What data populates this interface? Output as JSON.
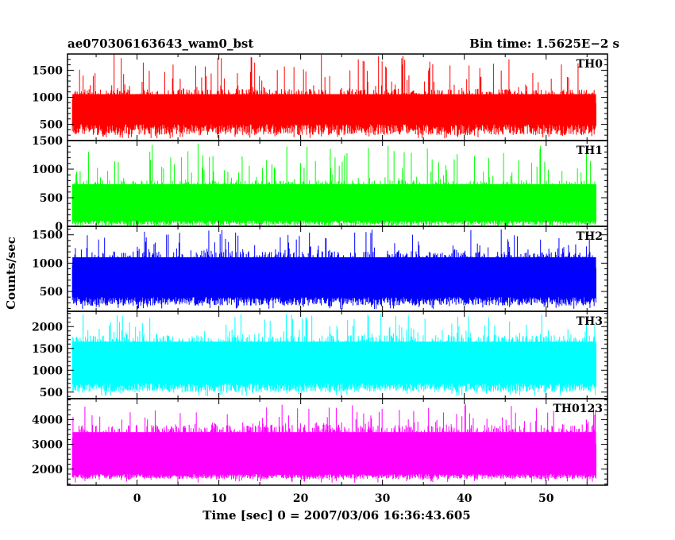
{
  "chart_data": {
    "type": "line",
    "title": "ae070306163643_wam0_bst",
    "subtitle": "Bin time: 1.5625E−2 s",
    "xlabel": "Time [sec] 0 = 2007/03/06 16:36:43.605",
    "ylabel": "Counts/sec",
    "xlim": [
      -8.5,
      57.5
    ],
    "x_data_range": [
      -7.9,
      56.1
    ],
    "xticks": [
      0,
      10,
      20,
      30,
      40,
      50
    ],
    "grid": false,
    "legend": "none",
    "panels": [
      {
        "name": "TH0",
        "color": "#ff0000",
        "ylim": [
          200,
          1800
        ],
        "yticks": [
          500,
          1000,
          1500
        ],
        "baseline": 500,
        "typical_high": 1150,
        "typical_low": 300,
        "spike_max": 1800
      },
      {
        "name": "TH1",
        "color": "#00ff00",
        "ylim": [
          0,
          1500
        ],
        "yticks": [
          0,
          500,
          1000,
          1500
        ],
        "baseline": 100,
        "typical_high": 800,
        "typical_low": 20,
        "spike_max": 1450
      },
      {
        "name": "TH2",
        "color": "#0000ff",
        "ylim": [
          150,
          1650
        ],
        "yticks": [
          500,
          1000,
          1500
        ],
        "baseline": 400,
        "typical_high": 1200,
        "typical_low": 250,
        "spike_max": 1600
      },
      {
        "name": "TH3",
        "color": "#00ffff",
        "ylim": [
          350,
          2350
        ],
        "yticks": [
          500,
          1000,
          1500,
          2000
        ],
        "baseline": 700,
        "typical_high": 1800,
        "typical_low": 500,
        "spike_max": 2300
      },
      {
        "name": "TH0123",
        "color": "#ff00ff",
        "ylim": [
          1350,
          4850
        ],
        "yticks": [
          2000,
          3000,
          4000
        ],
        "baseline": 1800,
        "typical_high": 3800,
        "typical_low": 1600,
        "spike_max": 4700
      }
    ]
  }
}
